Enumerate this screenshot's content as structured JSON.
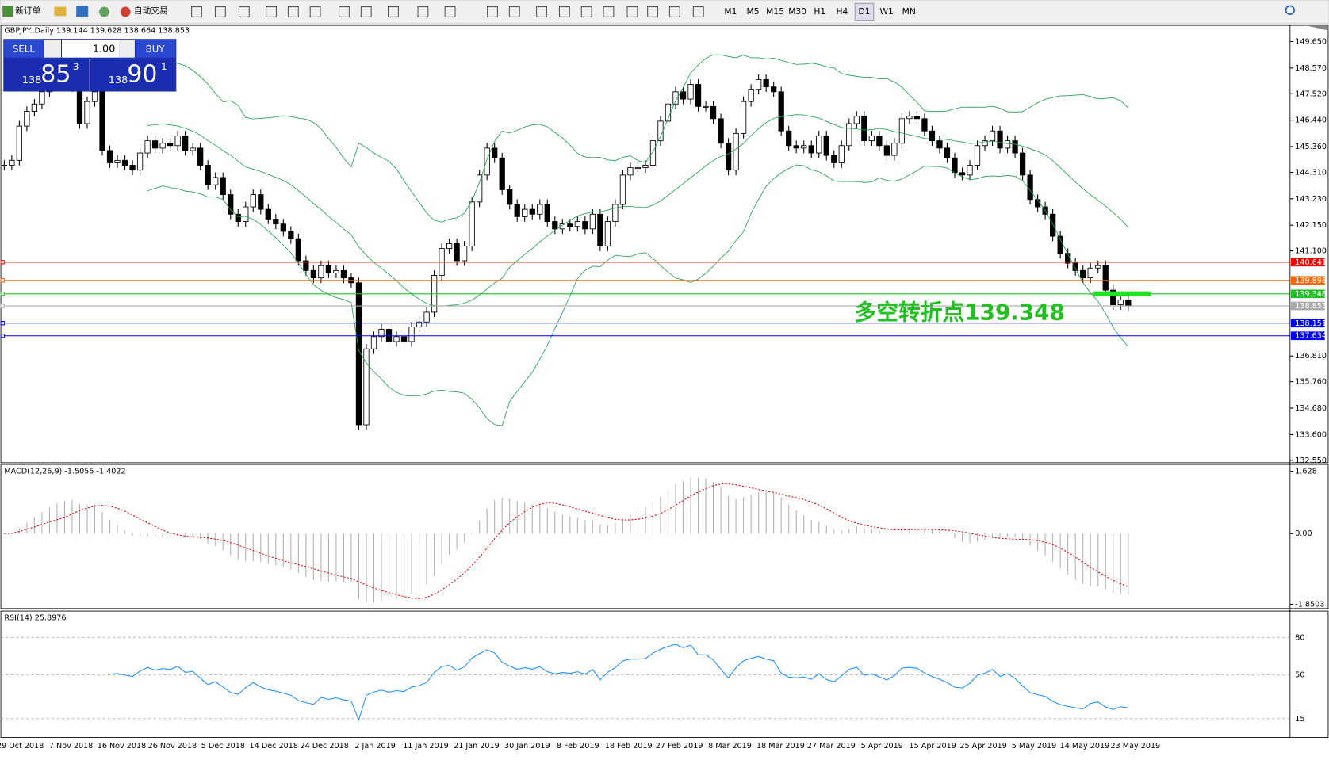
{
  "toolbar": {
    "new_order": "新订单",
    "auto_trading": "自动交易",
    "timeframes": [
      "M1",
      "M5",
      "M15",
      "M30",
      "H1",
      "H4",
      "D1",
      "W1",
      "MN"
    ]
  },
  "chart_header": "GBPJPY.,Daily  139.144 139.628 138.664 138.853",
  "trade_panel": {
    "sell": "SELL",
    "lots": "1.00",
    "buy": "BUY",
    "sell_big": "138",
    "sell_pips": "85",
    "sell_frac": "3",
    "buy_big": "138",
    "buy_pips": "90",
    "buy_frac": "1"
  },
  "price": {
    "ylim": [
      132.45,
      150.31
    ],
    "yticks": [
      {
        "value": 149.65,
        "label": "149.650"
      },
      {
        "value": 148.57,
        "label": "148.570"
      },
      {
        "value": 147.52,
        "label": "147.520"
      },
      {
        "value": 146.44,
        "label": "146.440"
      },
      {
        "value": 145.36,
        "label": "145.360"
      },
      {
        "value": 144.31,
        "label": "144.310"
      },
      {
        "value": 143.23,
        "label": "143.230"
      },
      {
        "value": 142.15,
        "label": "142.150"
      },
      {
        "value": 141.1,
        "label": "141.100"
      },
      {
        "value": 136.81,
        "label": "136.810"
      },
      {
        "value": 135.76,
        "label": "135.760"
      },
      {
        "value": 134.68,
        "label": "134.680"
      },
      {
        "value": 133.6,
        "label": "133.600"
      },
      {
        "value": 132.55,
        "label": "132.550"
      }
    ],
    "levels": [
      {
        "value": 140.641,
        "color": "#ff0000"
      },
      {
        "value": 139.898,
        "color": "#ff6600"
      },
      {
        "value": 139.348,
        "color": "#22c022"
      },
      {
        "value": 138.853,
        "color": "#aaaaaa"
      },
      {
        "value": 138.151,
        "color": "#0000ff"
      },
      {
        "value": 137.634,
        "color": "#0000ff"
      }
    ],
    "closes": [
      144.6,
      144.8,
      146.2,
      146.8,
      147.1,
      147.6,
      147.9,
      148.1,
      148.0,
      147.8,
      146.3,
      147.2,
      147.6,
      145.2,
      144.7,
      144.8,
      144.6,
      144.4,
      145.1,
      145.6,
      145.3,
      145.5,
      145.4,
      145.8,
      145.2,
      145.3,
      144.6,
      143.8,
      144.1,
      143.4,
      142.6,
      142.3,
      142.9,
      143.4,
      142.8,
      142.4,
      142.2,
      141.9,
      141.6,
      140.7,
      140.3,
      140.0,
      140.5,
      140.2,
      140.3,
      140.0,
      139.8,
      134.0,
      137.1,
      137.6,
      137.9,
      137.4,
      137.6,
      137.4,
      138.0,
      138.2,
      138.6,
      140.1,
      141.2,
      141.4,
      140.7,
      141.3,
      143.1,
      144.2,
      145.3,
      144.9,
      143.6,
      143.0,
      142.5,
      142.8,
      142.6,
      143.0,
      142.3,
      142.0,
      142.2,
      142.1,
      142.3,
      142.0,
      142.6,
      141.3,
      142.3,
      143.0,
      144.2,
      144.5,
      144.5,
      144.6,
      145.6,
      146.4,
      147.1,
      147.6,
      147.3,
      147.9,
      147.0,
      147.0,
      146.5,
      145.5,
      144.4,
      145.9,
      147.2,
      147.7,
      148.1,
      147.8,
      147.6,
      146.0,
      145.4,
      145.3,
      145.4,
      145.1,
      145.8,
      145.0,
      144.7,
      145.4,
      146.3,
      146.6,
      145.6,
      145.8,
      145.4,
      145.0,
      145.5,
      146.5,
      146.6,
      146.5,
      146.0,
      145.6,
      145.3,
      144.9,
      144.3,
      144.2,
      144.6,
      145.4,
      145.6,
      146.0,
      145.3,
      145.6,
      145.1,
      144.2,
      143.2,
      142.9,
      142.6,
      141.7,
      141.0,
      140.6,
      140.3,
      140.0,
      140.4,
      140.5,
      139.5,
      138.9,
      139.1,
      138.853
    ],
    "annotation": "多空转折点139.348"
  },
  "macd": {
    "label": "MACD(12,26,9) -1.5055 -1.4022",
    "ylim": [
      -1.8503,
      1.628
    ],
    "yticks": [
      {
        "value": 1.628,
        "label": "1.628"
      },
      {
        "value": 0,
        "label": "0.00"
      },
      {
        "value": -1.8503,
        "label": "-1.8503"
      }
    ]
  },
  "rsi": {
    "label": "RSI(14) 25.8976",
    "ylim": [
      0,
      100
    ],
    "yticks": [
      80,
      50,
      15
    ]
  },
  "dates": [
    "29 Oct 2018",
    "7 Nov 2018",
    "16 Nov 2018",
    "26 Nov 2018",
    "5 Dec 2018",
    "14 Dec 2018",
    "24 Dec 2018",
    "2 Jan 2019",
    "11 Jan 2019",
    "21 Jan 2019",
    "30 Jan 2019",
    "8 Feb 2019",
    "18 Feb 2019",
    "27 Feb 2019",
    "8 Mar 2019",
    "18 Mar 2019",
    "27 Mar 2019",
    "5 Apr 2019",
    "15 Apr 2019",
    "25 Apr 2019",
    "5 May 2019",
    "14 May 2019",
    "23 May 2019"
  ]
}
